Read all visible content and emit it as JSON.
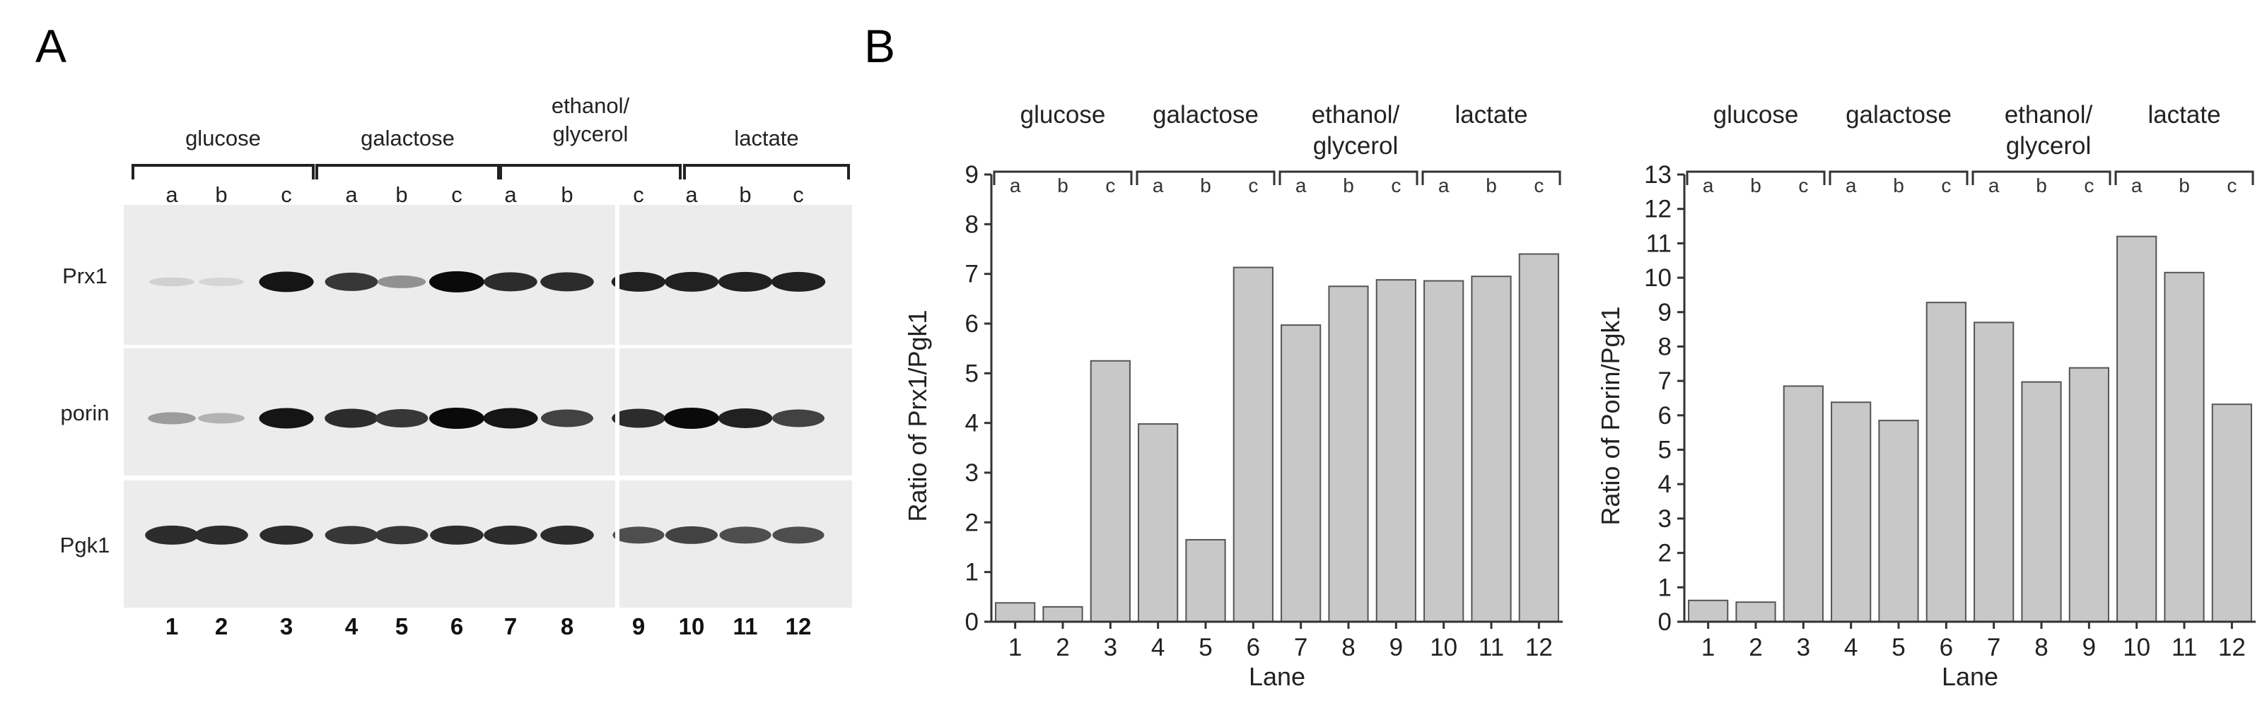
{
  "panels": {
    "a_label": "A",
    "b_label": "B"
  },
  "blot": {
    "conditions": [
      "glucose",
      "galactose",
      "ethanol/\nglycerol",
      "lactate"
    ],
    "sublabels": [
      "a",
      "b",
      "c",
      "a",
      "b",
      "c",
      "a",
      "b",
      "c",
      "a",
      "b",
      "c"
    ],
    "rows": [
      {
        "name": "Prx1",
        "intensities": [
          0.12,
          0.1,
          0.95,
          0.8,
          0.4,
          1.0,
          0.85,
          0.85,
          0.9,
          0.9,
          0.9,
          0.9
        ]
      },
      {
        "name": "porin",
        "intensities": [
          0.35,
          0.25,
          0.95,
          0.85,
          0.8,
          1.0,
          0.95,
          0.75,
          0.85,
          1.0,
          0.9,
          0.75
        ]
      },
      {
        "name": "Pgk1",
        "intensities": [
          0.85,
          0.85,
          0.85,
          0.8,
          0.8,
          0.85,
          0.85,
          0.85,
          0.7,
          0.75,
          0.7,
          0.7
        ]
      }
    ],
    "lane_numbers": [
      "1",
      "2",
      "3",
      "4",
      "5",
      "6",
      "7",
      "8",
      "9",
      "10",
      "11",
      "12"
    ]
  },
  "chart_data": [
    {
      "type": "bar",
      "categories": [
        "1",
        "2",
        "3",
        "4",
        "5",
        "6",
        "7",
        "8",
        "9",
        "10",
        "11",
        "12"
      ],
      "values": [
        0.38,
        0.3,
        5.25,
        3.98,
        1.65,
        7.13,
        5.97,
        6.75,
        6.88,
        6.86,
        6.95,
        7.4
      ],
      "xlabel": "Lane",
      "ylabel": "Ratio of Prx1/Pgk1",
      "ylim": [
        0,
        9
      ],
      "yticks": [
        "0",
        "1",
        "2",
        "3",
        "4",
        "5",
        "6",
        "7",
        "8",
        "9"
      ],
      "groups": [
        "glucose",
        "galactose",
        "ethanol/\nglycerol",
        "lactate"
      ],
      "sublabels": [
        "a",
        "b",
        "c",
        "a",
        "b",
        "c",
        "a",
        "b",
        "c",
        "a",
        "b",
        "c"
      ],
      "bar_color": "#c8c8c8",
      "grid": false
    },
    {
      "type": "bar",
      "categories": [
        "1",
        "2",
        "3",
        "4",
        "5",
        "6",
        "7",
        "8",
        "9",
        "10",
        "11",
        "12"
      ],
      "values": [
        0.62,
        0.57,
        6.85,
        6.38,
        5.85,
        9.28,
        8.7,
        6.97,
        7.38,
        11.2,
        10.15,
        6.32
      ],
      "xlabel": "Lane",
      "ylabel": "Ratio of Porin/Pgk1",
      "ylim": [
        0,
        13
      ],
      "yticks": [
        "0",
        "1",
        "2",
        "3",
        "4",
        "5",
        "6",
        "7",
        "8",
        "9",
        "10",
        "11",
        "12",
        "13"
      ],
      "groups": [
        "glucose",
        "galactose",
        "ethanol/\nglycerol",
        "lactate"
      ],
      "sublabels": [
        "a",
        "b",
        "c",
        "a",
        "b",
        "c",
        "a",
        "b",
        "c",
        "a",
        "b",
        "c"
      ],
      "bar_color": "#c8c8c8",
      "grid": false
    }
  ]
}
